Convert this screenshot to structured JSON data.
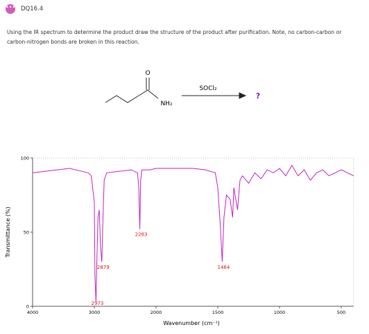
{
  "header": {
    "title": "DQ16.4"
  },
  "question": "Using the IR spectrum to determine the product draw the structure of the product after purification. Note, no carbon-carbon or carbon-nitrogen bonds are broken in this reaction.",
  "reaction": {
    "oxygen": "O",
    "amine": "NH₂",
    "reagent": "SOCl₂",
    "product": "?"
  },
  "chart_data": {
    "type": "line",
    "xlabel": "Wavenumber (cm⁻¹)",
    "ylabel": "Transmittance (%)",
    "xlim": [
      4000,
      400
    ],
    "ylim": [
      0,
      100
    ],
    "xticks": [
      4000,
      3000,
      2000,
      1500,
      1000,
      500
    ],
    "yticks": [
      0,
      50,
      100
    ],
    "series": [
      {
        "name": "IR spectrum",
        "color": "#c21fc2",
        "x": [
          4000,
          3800,
          3600,
          3400,
          3200,
          3100,
          3050,
          3000,
          2990,
          2973,
          2960,
          2940,
          2920,
          2900,
          2879,
          2860,
          2840,
          2800,
          2600,
          2400,
          2300,
          2280,
          2263,
          2250,
          2230,
          2100,
          2000,
          1800,
          1700,
          1600,
          1520,
          1500,
          1480,
          1464,
          1450,
          1430,
          1400,
          1380,
          1370,
          1340,
          1320,
          1300,
          1250,
          1200,
          1150,
          1100,
          1050,
          1000,
          950,
          900,
          850,
          800,
          750,
          700,
          650,
          600,
          500,
          400
        ],
        "values": [
          90,
          91,
          92,
          93,
          91,
          90,
          88,
          70,
          20,
          3,
          30,
          60,
          65,
          40,
          30,
          60,
          85,
          90,
          91,
          92,
          90,
          80,
          52,
          85,
          92,
          92,
          93,
          93,
          93,
          92,
          90,
          80,
          55,
          30,
          60,
          75,
          72,
          60,
          80,
          65,
          85,
          88,
          83,
          90,
          86,
          92,
          90,
          93,
          88,
          95,
          88,
          92,
          85,
          90,
          92,
          88,
          92,
          88
        ]
      }
    ],
    "peak_labels": [
      2973,
      2879,
      2263,
      1464
    ]
  }
}
